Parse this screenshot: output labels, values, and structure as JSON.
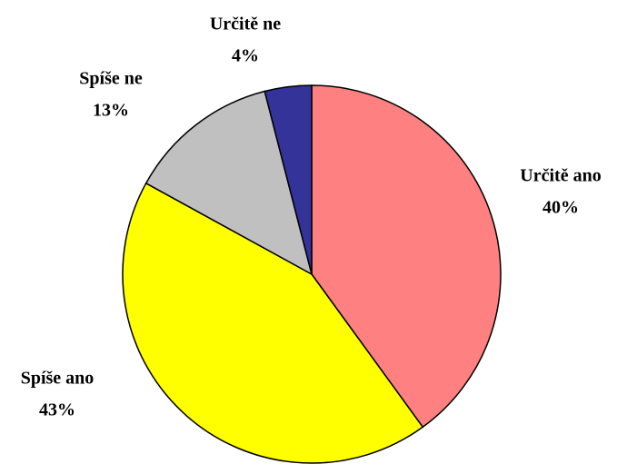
{
  "chart_data": {
    "type": "pie",
    "categories": [
      "Určitě ano",
      "Spíše ano",
      "Spíše ne",
      "Určitě ne"
    ],
    "values": [
      40,
      43,
      13,
      4
    ],
    "value_labels": [
      "40%",
      "43%",
      "13%",
      "4%"
    ],
    "colors": [
      "#ff8080",
      "#ffff00",
      "#c0c0c0",
      "#333399"
    ]
  }
}
